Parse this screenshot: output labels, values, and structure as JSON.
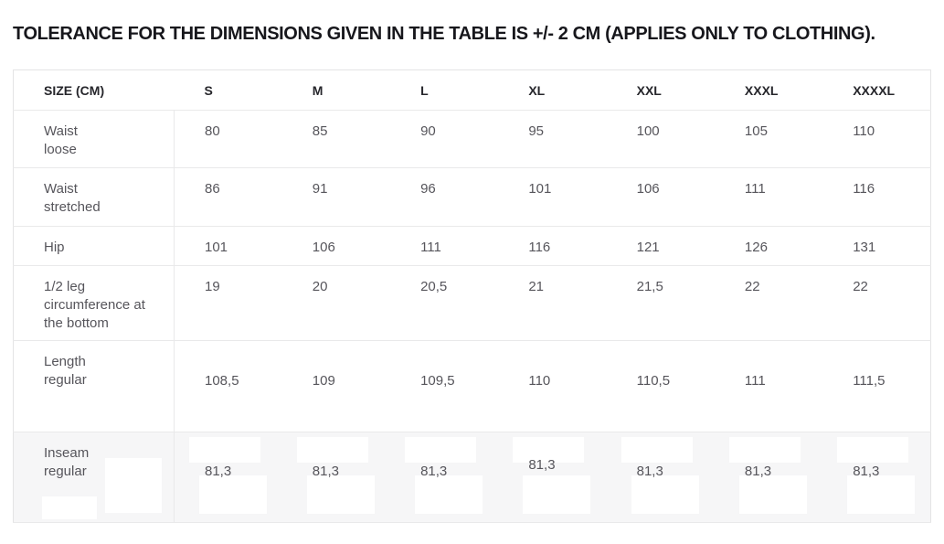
{
  "page_title": "TOLERANCE FOR THE DIMENSIONS GIVEN IN THE TABLE IS +/- 2 CM (APPLIES ONLY TO CLOTHING).",
  "size_table": {
    "columns": [
      "SIZE (CM)",
      "S",
      "M",
      "L",
      "XL",
      "XXL",
      "XXXL",
      "XXXXL"
    ],
    "rows": [
      {
        "label": "Waist\nloose",
        "values": [
          "80",
          "85",
          "90",
          "95",
          "100",
          "105",
          "110"
        ]
      },
      {
        "label": "Waist\nstretched",
        "values": [
          "86",
          "91",
          "96",
          "101",
          "106",
          "111",
          "116"
        ]
      },
      {
        "label": "Hip",
        "values": [
          "101",
          "106",
          "111",
          "116",
          "121",
          "126",
          "131"
        ]
      },
      {
        "label": "1/2 leg\ncircumference at\nthe bottom",
        "values": [
          "19",
          "20",
          "20,5",
          "21",
          "21,5",
          "22",
          "22"
        ]
      },
      {
        "label": "Length\nregular",
        "values": [
          "108,5",
          "109",
          "109,5",
          "110",
          "110,5",
          "111",
          "111,5"
        ]
      },
      {
        "label": "Inseam\nregular",
        "values": [
          "81,3",
          "81,3",
          "81,3",
          "81,3",
          "81,3",
          "81,3",
          "81,3"
        ]
      }
    ]
  },
  "colors": {
    "title_text": "#17171c",
    "header_text": "#26262b",
    "body_text": "#56555b",
    "border": "#e9e9ea",
    "last_row_background": "#f6f6f7",
    "artifact_patch": "#ffffff"
  }
}
